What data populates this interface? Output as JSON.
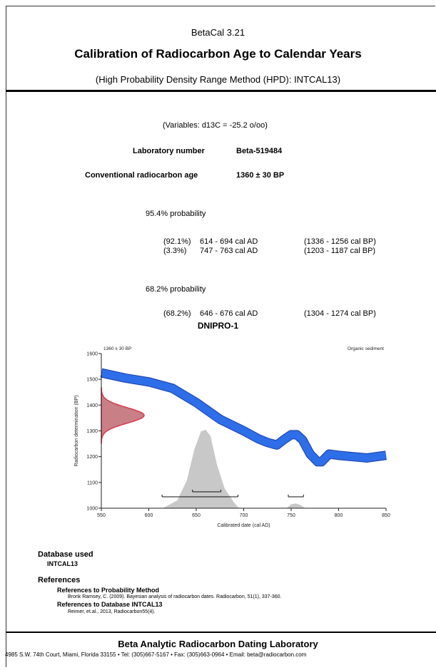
{
  "header": {
    "software": "BetaCal 3.21",
    "title": "Calibration of Radiocarbon Age to Calendar Years",
    "method": "(High Probability Density Range Method (HPD): INTCAL13)"
  },
  "variables": "(Variables: d13C = -25.2 o/oo)",
  "lab": {
    "label": "Laboratory number",
    "value": "Beta-519484"
  },
  "age": {
    "label": "Conventional radiocarbon age",
    "value": "1360 ± 30 BP"
  },
  "prob95": {
    "heading": "95.4% probability",
    "rows": [
      {
        "pct": "(92.1%)",
        "ad": "614 - 694 cal AD",
        "bp": "(1336 - 1256 cal  BP)"
      },
      {
        "pct": "(3.3%)",
        "ad": "747 - 763 cal AD",
        "bp": "(1203 - 1187 cal  BP)"
      }
    ]
  },
  "prob68": {
    "heading": "68.2% probability",
    "rows": [
      {
        "pct": "(68.2%)",
        "ad": "646 - 676 cal AD",
        "bp": "(1304 - 1274 cal  BP)"
      }
    ]
  },
  "chart_data": {
    "type": "line",
    "title": "DNIPRO-1",
    "corner_left": "1360 ± 30 BP",
    "corner_right": "Organic sediment",
    "xlabel": "Calibrated date (cal AD)",
    "ylabel": "Radiocarbon determination (BP)",
    "xlim": [
      550,
      850
    ],
    "ylim": [
      1000,
      1600
    ],
    "xticks": [
      550,
      600,
      650,
      700,
      750,
      800,
      850
    ],
    "yticks": [
      1000,
      1100,
      1200,
      1300,
      1400,
      1500,
      1600
    ],
    "calibration_curve": {
      "x": [
        550,
        575,
        600,
        625,
        650,
        675,
        700,
        715,
        725,
        735,
        742,
        750,
        756,
        762,
        770,
        778,
        782,
        790,
        800,
        815,
        830,
        850
      ],
      "y": [
        1525,
        1505,
        1490,
        1465,
        1410,
        1345,
        1300,
        1270,
        1255,
        1245,
        1265,
        1285,
        1285,
        1265,
        1210,
        1180,
        1180,
        1210,
        1205,
        1200,
        1195,
        1205
      ],
      "color": "#2e6ee8",
      "edge_color": "#1a3ea8"
    },
    "radiocarbon_distribution": {
      "mean": 1360,
      "sigma": 30,
      "color": "#d93a4d"
    },
    "calibrated_distribution": {
      "x": [
        615,
        630,
        640,
        648,
        655,
        660,
        665,
        672,
        680,
        690,
        695,
        745,
        750,
        755,
        760,
        765
      ],
      "density": [
        0,
        0.1,
        0.35,
        0.75,
        0.98,
        1.0,
        0.92,
        0.55,
        0.25,
        0.07,
        0,
        0,
        0.05,
        0.06,
        0.04,
        0
      ],
      "color": "#c8c8c8"
    },
    "hpd_bars": {
      "prob68": [
        [
          646,
          676
        ]
      ],
      "prob95": [
        [
          614,
          694
        ],
        [
          747,
          763
        ]
      ]
    }
  },
  "database": {
    "heading": "Database used",
    "value": "INTCAL13"
  },
  "references": {
    "heading": "References",
    "prob_heading": "References to Probability Method",
    "prob_text": "Bronk Ramsey, C. (2009). Bayesian analysis of radiocarbon dates. Radiocarbon, 51(1), 337-360.",
    "db_heading": "References to Database INTCAL13",
    "db_text": "Reimer, et.al., 2013, Radiocarbon55(4)."
  },
  "footer": {
    "lab_name": "Beta Analytic Radiocarbon Dating Laboratory",
    "address": "4985 S.W. 74th Court, Miami, Florida 33155 • Tel: (305)667-5167 • Fax: (305)663-0964 • Email: beta@radiocarbon.com"
  }
}
